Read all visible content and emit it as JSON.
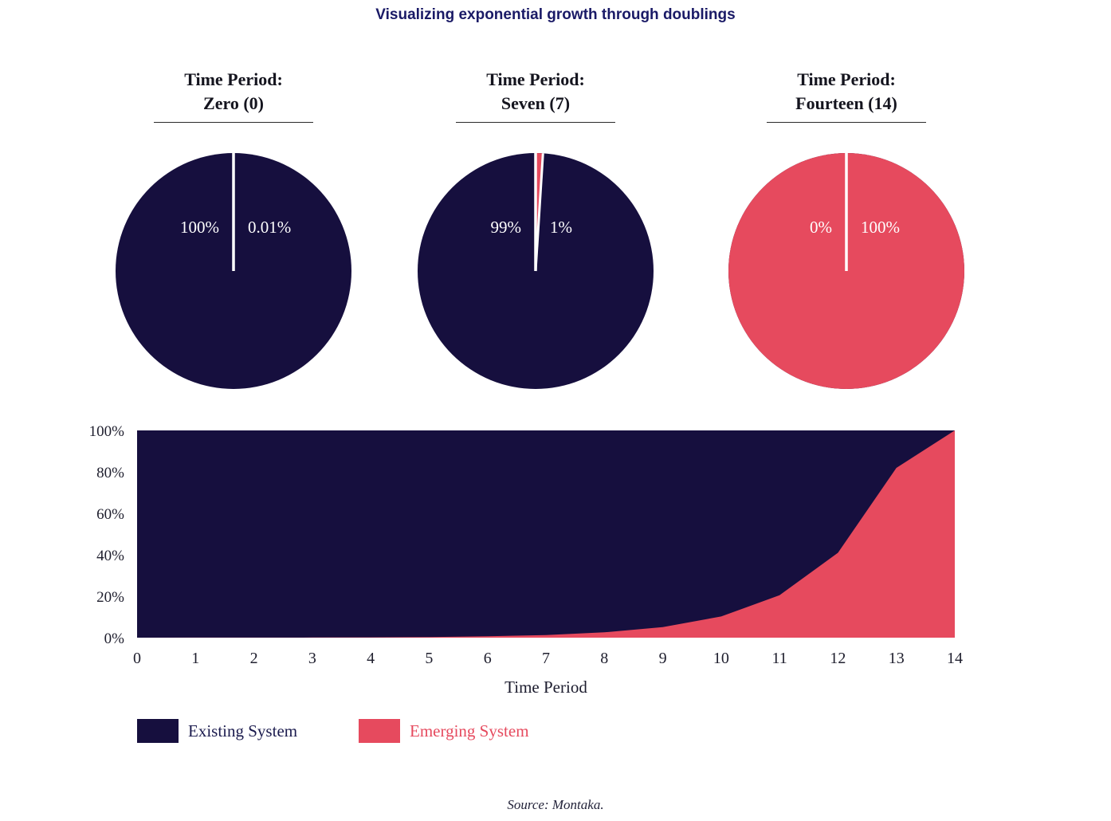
{
  "title": "Visualizing exponential growth through doublings",
  "colors": {
    "existing": "#160f3e",
    "emerging": "#e64a5e",
    "title_accent": "#1a1a66"
  },
  "pies": [
    {
      "title_line1": "Time Period:",
      "title_line2": "Zero (0)",
      "existing_label": "100%",
      "emerging_label": "0.01%",
      "existing_pct": 99.99,
      "emerging_pct": 0.01
    },
    {
      "title_line1": "Time Period:",
      "title_line2": "Seven (7)",
      "existing_label": "99%",
      "emerging_label": "1%",
      "existing_pct": 99,
      "emerging_pct": 1
    },
    {
      "title_line1": "Time Period:",
      "title_line2": "Fourteen (14)",
      "existing_label": "0%",
      "emerging_label": "100%",
      "existing_pct": 0,
      "emerging_pct": 100
    }
  ],
  "chart_data": {
    "type": "area",
    "stacked": true,
    "title": "Visualizing exponential growth through doublings",
    "x": [
      0,
      1,
      2,
      3,
      4,
      5,
      6,
      7,
      8,
      9,
      10,
      11,
      12,
      13,
      14
    ],
    "series": [
      {
        "name": "Existing System",
        "color": "#160f3e",
        "values": [
          99.99,
          99.98,
          99.96,
          99.92,
          99.84,
          99.68,
          99.36,
          98.72,
          97.44,
          94.88,
          89.76,
          79.52,
          59.04,
          18.08,
          0
        ]
      },
      {
        "name": "Emerging System",
        "color": "#e64a5e",
        "values": [
          0.01,
          0.02,
          0.04,
          0.08,
          0.16,
          0.32,
          0.64,
          1.28,
          2.56,
          5.12,
          10.24,
          20.48,
          40.96,
          81.92,
          100
        ]
      }
    ],
    "xlabel": "Time Period",
    "ylabel": "",
    "ylim": [
      0,
      100
    ],
    "yticks": [
      "0%",
      "20%",
      "40%",
      "60%",
      "80%",
      "100%"
    ],
    "xticks": [
      "0",
      "1",
      "2",
      "3",
      "4",
      "5",
      "6",
      "7",
      "8",
      "9",
      "10",
      "11",
      "12",
      "13",
      "14"
    ],
    "legend": [
      "Existing System",
      "Emerging System"
    ],
    "legend_position": "bottom",
    "grid": false
  },
  "source": "Source: Montaka."
}
